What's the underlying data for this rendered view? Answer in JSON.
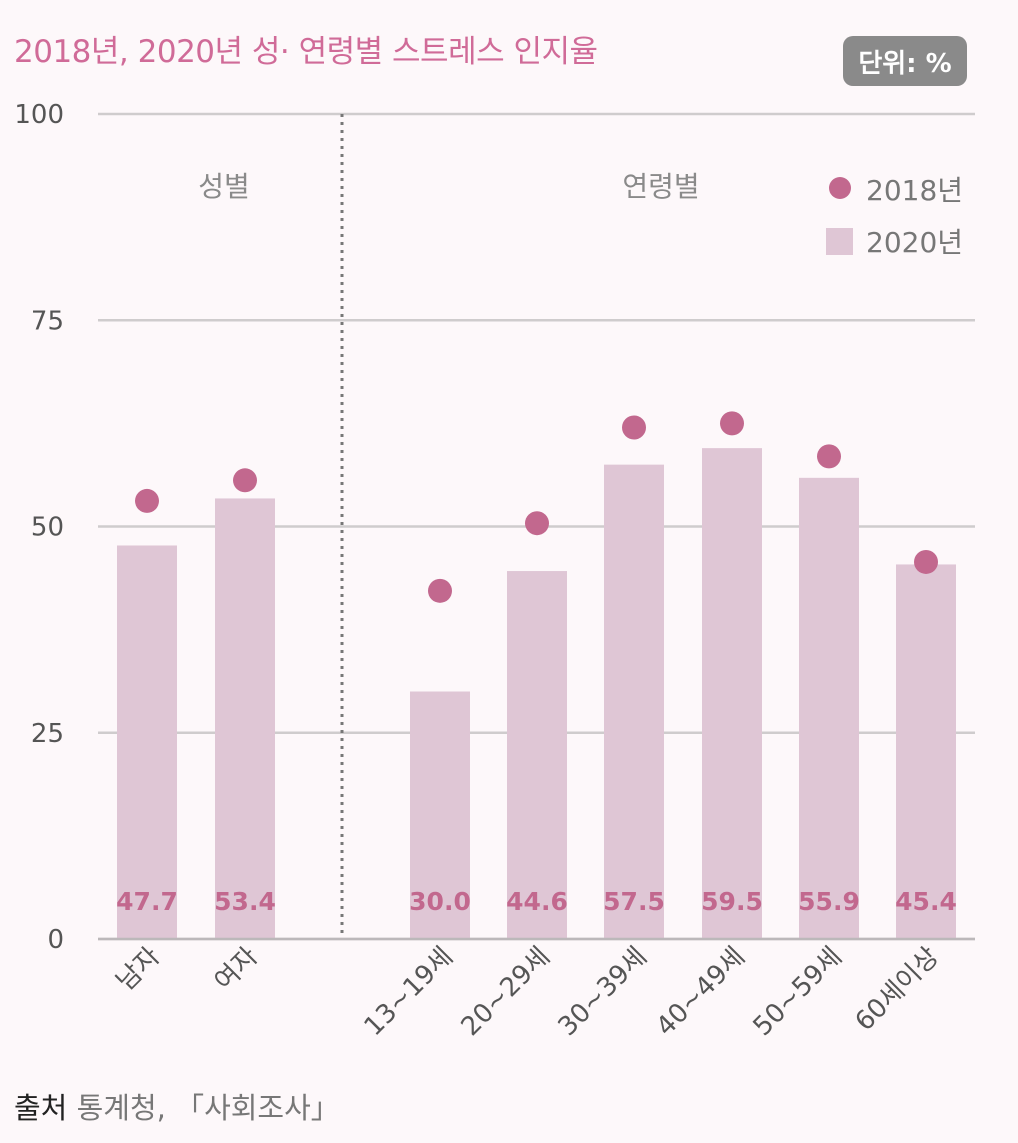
{
  "title": "2018년, 2020년 성· 연령별 스트레스 인지율",
  "unit": "단위: %",
  "source": {
    "label": "출처",
    "text": "통계청, 「사회조사」"
  },
  "colors": {
    "bar": "#dfc6d5",
    "dot": "#c2688e",
    "label": "#c2688e",
    "grid": "#cfcccd",
    "axisText": "#555555",
    "groupText": "#8a8a8a"
  },
  "chart_data": {
    "type": "bar",
    "categories": [
      "남자",
      "여자",
      "13~19세",
      "20~29세",
      "30~39세",
      "40~49세",
      "50~59세",
      "60세이상"
    ],
    "groups": [
      {
        "label": "성별",
        "categories": [
          "남자",
          "여자"
        ]
      },
      {
        "label": "연령별",
        "categories": [
          "13~19세",
          "20~29세",
          "30~39세",
          "40~49세",
          "50~59세",
          "60세이상"
        ]
      }
    ],
    "series": [
      {
        "name": "2018년",
        "mark": "dot",
        "values": [
          53.1,
          55.6,
          42.2,
          50.4,
          62.0,
          62.5,
          58.5,
          45.7
        ]
      },
      {
        "name": "2020년",
        "mark": "bar",
        "values": [
          47.7,
          53.4,
          30.0,
          44.6,
          57.5,
          59.5,
          55.9,
          45.4
        ]
      }
    ],
    "value_labels": [
      "47.7",
      "53.4",
      "30.0",
      "44.6",
      "57.5",
      "59.5",
      "55.9",
      "45.4"
    ],
    "yticks": [
      "0",
      "25",
      "50",
      "75",
      "100"
    ],
    "ylim": [
      0,
      100
    ],
    "grid": true,
    "legend": "top-right"
  }
}
